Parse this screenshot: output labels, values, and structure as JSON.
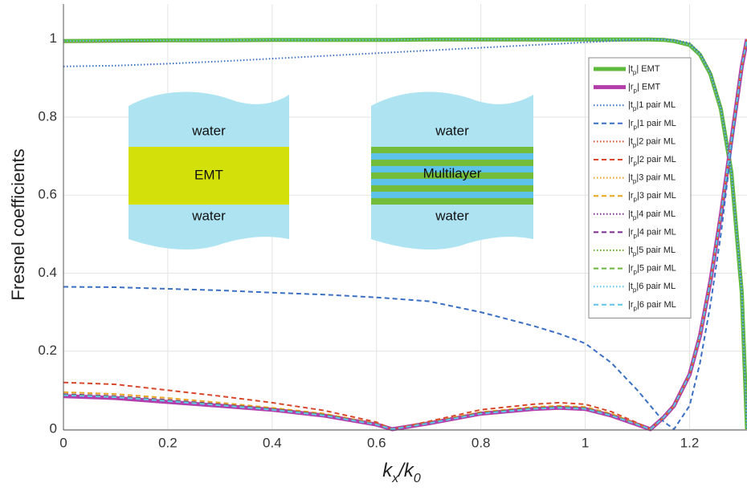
{
  "chart_data": {
    "type": "line",
    "xlabel": "kx/k0",
    "ylabel": "Fresnel coefficients",
    "annotations": [
      "water",
      "EMT",
      "water",
      "water",
      "Multilayer",
      "water"
    ],
    "x": [
      0,
      0.1,
      0.2,
      0.3,
      0.4,
      0.5,
      0.6,
      0.63,
      0.7,
      0.8,
      0.9,
      0.95,
      1.0,
      1.05,
      1.1,
      1.125,
      1.15,
      1.17,
      1.2,
      1.22,
      1.24,
      1.26,
      1.28,
      1.3,
      1.31
    ],
    "xlim": [
      0,
      1.31
    ],
    "ylim": [
      0,
      1.09
    ],
    "xticks": [
      0,
      0.2,
      0.4,
      0.6,
      0.8,
      1,
      1.2
    ],
    "yticks": [
      0,
      0.2,
      0.4,
      0.6,
      0.8,
      1
    ],
    "grid": true,
    "legend": "upper right",
    "series": [
      {
        "name": "|tp| EMT",
        "color": "#5dba3b",
        "style": "solid",
        "width": 5,
        "values": [
          0.995,
          0.996,
          0.997,
          0.997,
          0.998,
          0.998,
          0.998,
          0.998,
          0.999,
          0.999,
          0.999,
          0.999,
          0.999,
          0.999,
          0.999,
          0.999,
          0.998,
          0.995,
          0.985,
          0.96,
          0.91,
          0.82,
          0.66,
          0.35,
          0
        ]
      },
      {
        "name": "|rp| EMT",
        "color": "#b23dab",
        "style": "solid",
        "width": 5,
        "values": [
          0.085,
          0.08,
          0.07,
          0.06,
          0.05,
          0.035,
          0.012,
          0,
          0.015,
          0.04,
          0.052,
          0.055,
          0.052,
          0.035,
          0.012,
          0,
          0.03,
          0.06,
          0.14,
          0.24,
          0.38,
          0.55,
          0.74,
          0.93,
          1
        ]
      },
      {
        "name": "|tp|1 pair ML",
        "color": "#3a6fc4",
        "style": "dotted",
        "width": 2,
        "values": [
          0.93,
          0.932,
          0.937,
          0.943,
          0.95,
          0.957,
          0.964,
          0.966,
          0.971,
          0.978,
          0.985,
          0.988,
          0.992,
          0.995,
          0.998,
          0.999,
          1,
          0.998,
          0.99,
          0.965,
          0.915,
          0.825,
          0.665,
          0.36,
          0
        ]
      },
      {
        "name": "|rp|1 pair ML",
        "color": "#3a6fc4",
        "style": "dashed",
        "width": 2,
        "values": [
          0.365,
          0.364,
          0.36,
          0.356,
          0.35,
          0.345,
          0.338,
          0.335,
          0.328,
          0.3,
          0.265,
          0.245,
          0.22,
          0.17,
          0.1,
          0.06,
          0.02,
          0,
          0.06,
          0.17,
          0.32,
          0.5,
          0.72,
          0.93,
          1
        ]
      },
      {
        "name": "|tp|2 pair ML",
        "color": "#d9472b",
        "style": "dotted",
        "width": 2,
        "values": [
          0.993,
          0.994,
          0.995,
          0.996,
          0.997,
          0.998,
          0.998,
          0.998,
          0.998,
          0.998,
          0.998,
          0.998,
          0.998,
          0.999,
          0.999,
          0.999,
          0.998,
          0.995,
          0.985,
          0.96,
          0.91,
          0.82,
          0.66,
          0.35,
          0
        ]
      },
      {
        "name": "|rp|2 pair ML",
        "color": "#d9472b",
        "style": "dashed",
        "width": 2,
        "values": [
          0.12,
          0.115,
          0.1,
          0.085,
          0.068,
          0.048,
          0.018,
          0,
          0.02,
          0.05,
          0.064,
          0.068,
          0.064,
          0.045,
          0.016,
          0,
          0.03,
          0.06,
          0.14,
          0.24,
          0.38,
          0.55,
          0.74,
          0.93,
          1
        ]
      },
      {
        "name": "|tp|3 pair ML",
        "color": "#e8a31c",
        "style": "dotted",
        "width": 2,
        "values": [
          0.994,
          0.995,
          0.996,
          0.996,
          0.997,
          0.998,
          0.998,
          0.998,
          0.998,
          0.999,
          0.999,
          0.999,
          0.999,
          0.999,
          0.999,
          0.999,
          0.998,
          0.995,
          0.985,
          0.96,
          0.91,
          0.82,
          0.66,
          0.35,
          0
        ]
      },
      {
        "name": "|rp|3 pair ML",
        "color": "#e8a31c",
        "style": "dashed",
        "width": 2,
        "values": [
          0.095,
          0.09,
          0.08,
          0.068,
          0.055,
          0.04,
          0.014,
          0,
          0.017,
          0.044,
          0.057,
          0.06,
          0.057,
          0.04,
          0.013,
          0,
          0.03,
          0.06,
          0.14,
          0.24,
          0.38,
          0.55,
          0.74,
          0.93,
          1
        ]
      },
      {
        "name": "|tp|4 pair ML",
        "color": "#7a2a8c",
        "style": "dotted",
        "width": 2,
        "values": [
          0.995,
          0.995,
          0.996,
          0.997,
          0.997,
          0.998,
          0.998,
          0.998,
          0.999,
          0.999,
          0.999,
          0.999,
          0.999,
          0.999,
          0.999,
          0.999,
          0.998,
          0.995,
          0.985,
          0.96,
          0.91,
          0.82,
          0.66,
          0.35,
          0
        ]
      },
      {
        "name": "|rp|4 pair ML",
        "color": "#7a2a8c",
        "style": "dashed",
        "width": 2,
        "values": [
          0.09,
          0.085,
          0.075,
          0.064,
          0.052,
          0.037,
          0.013,
          0,
          0.016,
          0.042,
          0.054,
          0.057,
          0.054,
          0.037,
          0.012,
          0,
          0.03,
          0.06,
          0.14,
          0.24,
          0.38,
          0.55,
          0.74,
          0.93,
          1
        ]
      },
      {
        "name": "|tp|5 pair ML",
        "color": "#6ab43a",
        "style": "dotted",
        "width": 2,
        "values": [
          0.995,
          0.996,
          0.996,
          0.997,
          0.998,
          0.998,
          0.998,
          0.998,
          0.999,
          0.999,
          0.999,
          0.999,
          0.999,
          0.999,
          0.999,
          0.999,
          0.998,
          0.995,
          0.985,
          0.96,
          0.91,
          0.82,
          0.66,
          0.35,
          0
        ]
      },
      {
        "name": "|rp|5 pair ML",
        "color": "#6ab43a",
        "style": "dashed",
        "width": 2,
        "values": [
          0.088,
          0.083,
          0.073,
          0.062,
          0.051,
          0.036,
          0.012,
          0,
          0.015,
          0.041,
          0.053,
          0.056,
          0.053,
          0.036,
          0.012,
          0,
          0.03,
          0.06,
          0.14,
          0.24,
          0.38,
          0.55,
          0.74,
          0.93,
          1
        ]
      },
      {
        "name": "|tp|6 pair ML",
        "color": "#5ec3e8",
        "style": "dotted",
        "width": 2,
        "values": [
          0.995,
          0.996,
          0.997,
          0.997,
          0.998,
          0.998,
          0.998,
          0.998,
          0.999,
          0.999,
          0.999,
          0.999,
          0.999,
          0.999,
          0.999,
          0.999,
          0.998,
          0.995,
          0.985,
          0.96,
          0.91,
          0.82,
          0.66,
          0.35,
          0
        ]
      },
      {
        "name": "|rp|6 pair ML",
        "color": "#5ec3e8",
        "style": "dashed",
        "width": 2,
        "values": [
          0.087,
          0.082,
          0.072,
          0.061,
          0.05,
          0.035,
          0.012,
          0,
          0.015,
          0.04,
          0.052,
          0.055,
          0.052,
          0.035,
          0.012,
          0,
          0.03,
          0.06,
          0.14,
          0.24,
          0.38,
          0.55,
          0.74,
          0.93,
          1
        ]
      }
    ]
  }
}
